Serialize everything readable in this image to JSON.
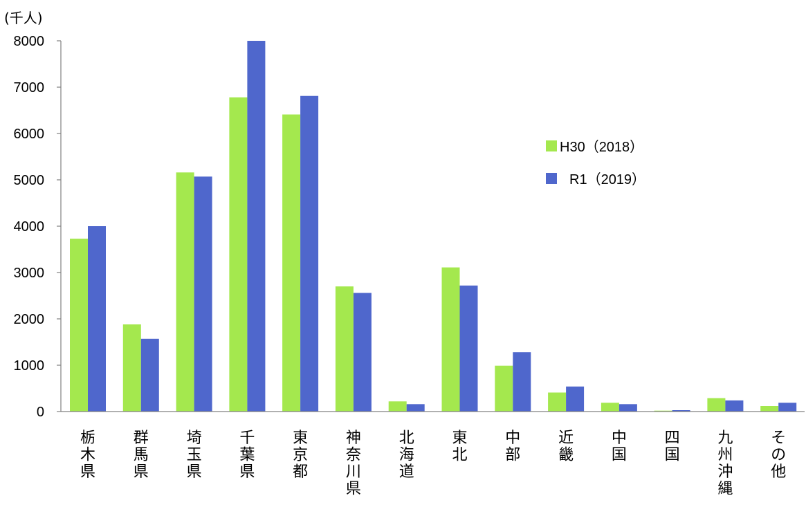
{
  "chart_data": {
    "type": "bar",
    "unit_label": "(千人)",
    "categories": [
      "栃木県",
      "群馬県",
      "埼玉県",
      "千葉県",
      "東京都",
      "神奈川県",
      "北海道",
      "東北",
      "中部",
      "近畿",
      "中国",
      "四国",
      "九州沖縄",
      "その他"
    ],
    "series": [
      {
        "name": "H30（2018）",
        "color": "#a4e84e",
        "values": [
          3730,
          1880,
          5160,
          6780,
          6410,
          2700,
          220,
          3110,
          990,
          410,
          190,
          20,
          290,
          120
        ]
      },
      {
        "name": "R1（2019）",
        "color": "#4f67cc",
        "values": [
          4000,
          1570,
          5070,
          8000,
          6810,
          2560,
          160,
          2720,
          1280,
          540,
          160,
          30,
          240,
          190
        ]
      }
    ],
    "ylim": [
      0,
      8000
    ],
    "yticks": [
      0,
      1000,
      2000,
      3000,
      4000,
      5000,
      6000,
      7000,
      8000
    ],
    "legend_position": "right",
    "grid": false
  }
}
